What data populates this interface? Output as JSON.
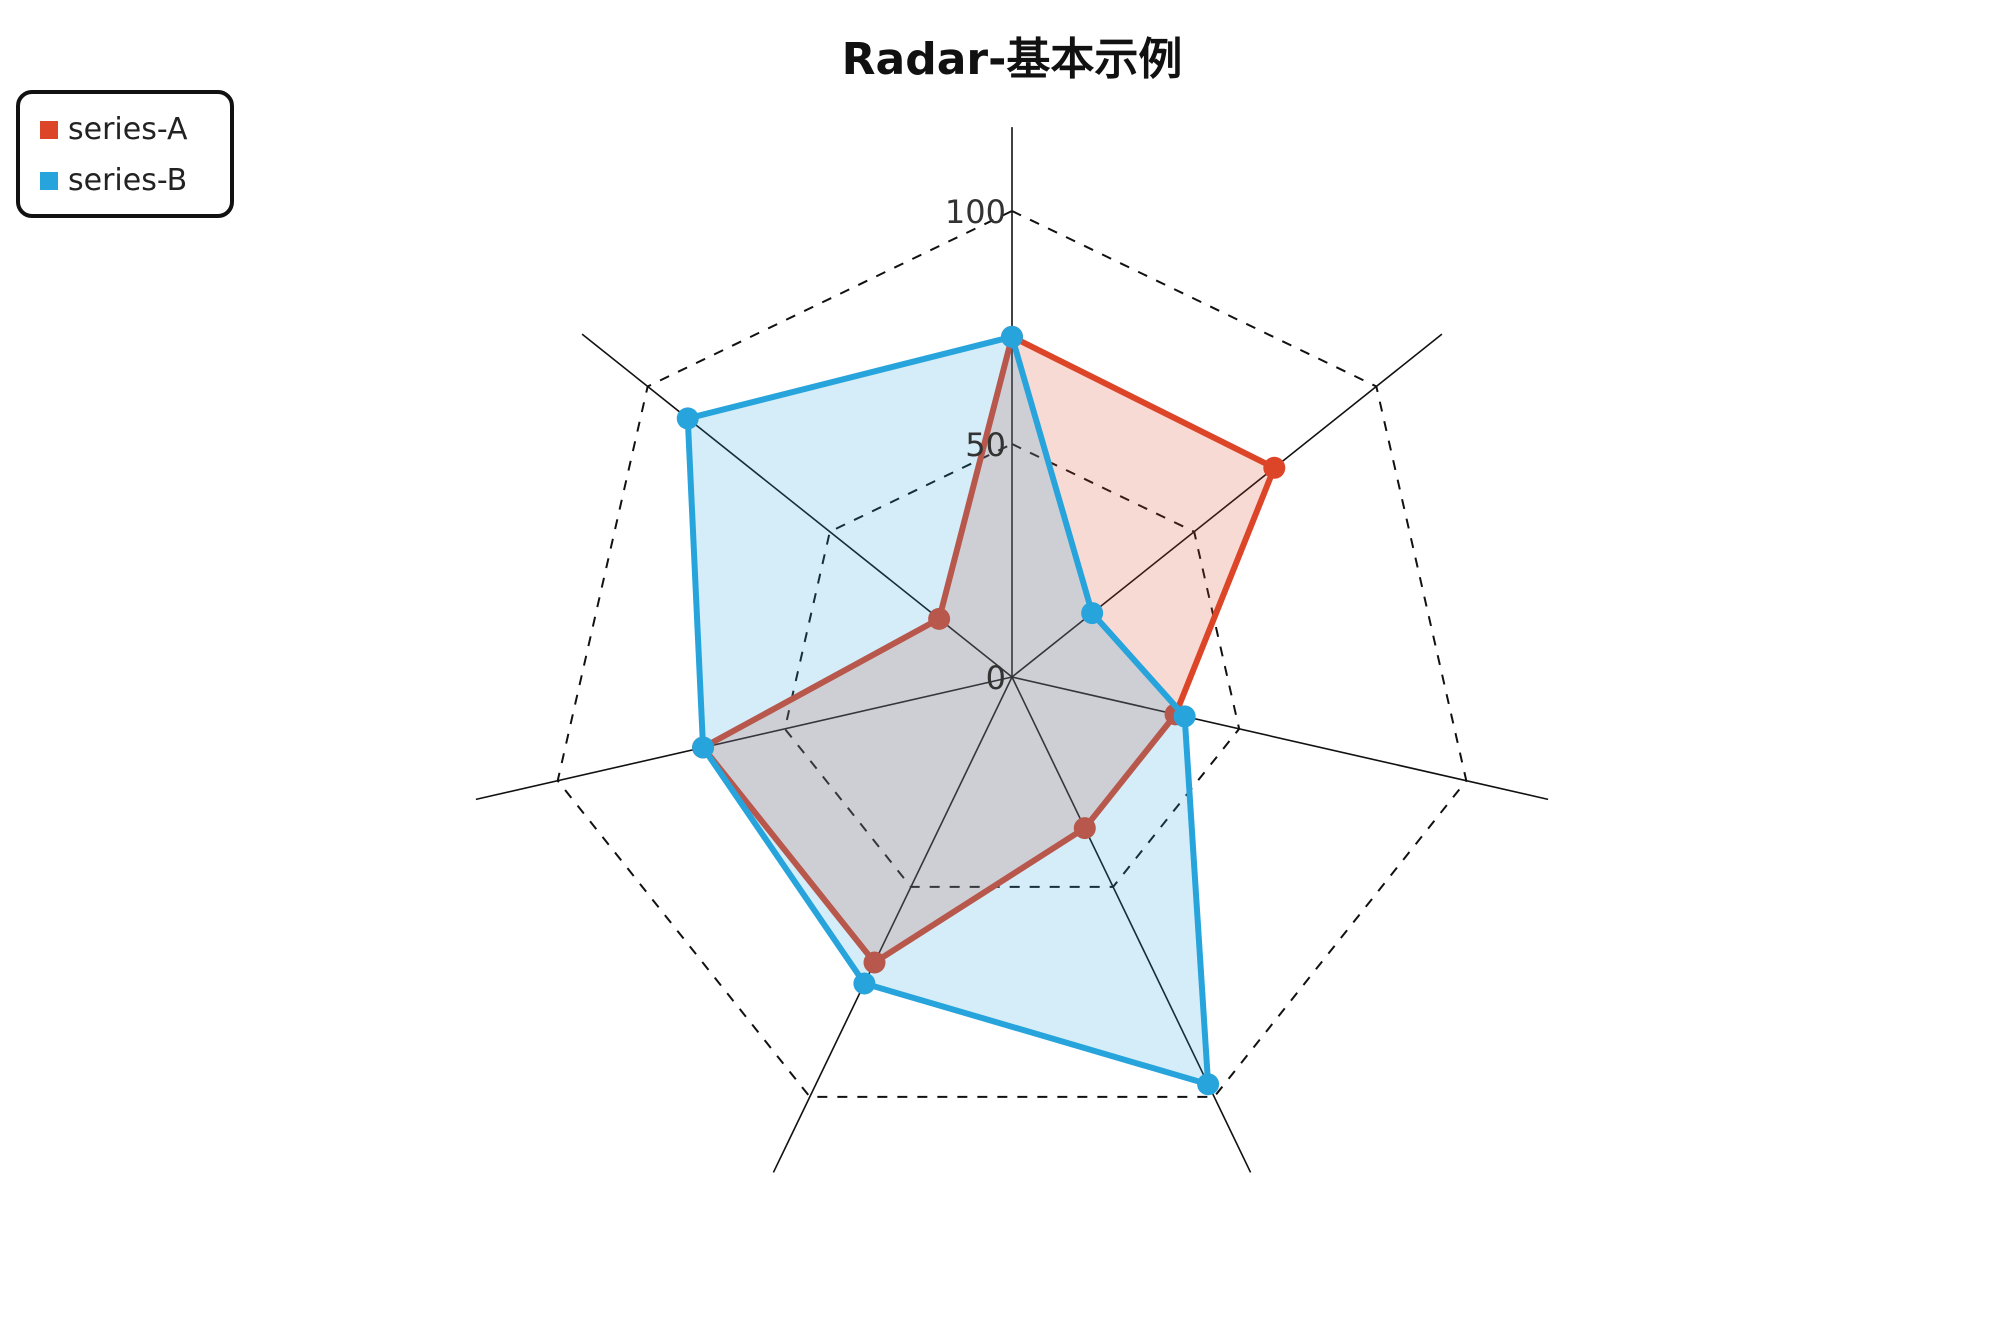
{
  "chart_data": {
    "type": "radar",
    "title": "Radar-基本示例",
    "axes_count": 7,
    "range": [
      0,
      100
    ],
    "ticks": [
      "0",
      "50",
      "100"
    ],
    "grid": true,
    "grid_style": "dashed",
    "legend_position": "top-left",
    "series": [
      {
        "name": "series-A",
        "color": "#dd4528",
        "values": [
          73,
          72,
          36,
          36,
          68,
          68,
          20
        ]
      },
      {
        "name": "series-B",
        "color": "#28a4dc",
        "values": [
          73,
          22,
          38,
          97,
          73,
          68,
          89
        ]
      }
    ]
  }
}
